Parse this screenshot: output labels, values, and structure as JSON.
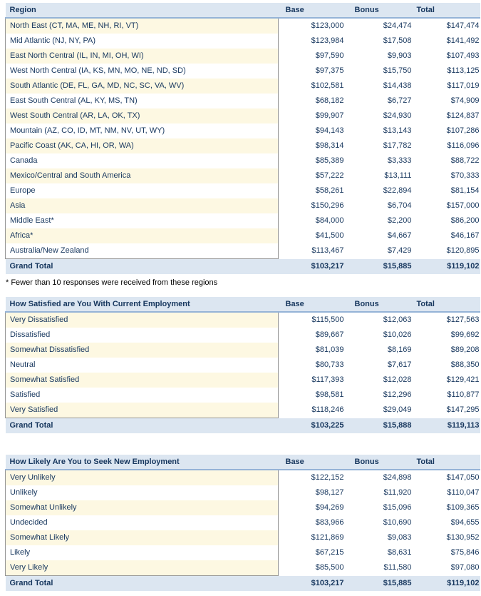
{
  "colors": {
    "header_bg": "#DCE6F1",
    "header_rule": "#95B3D7",
    "band_cream": "#FDF8E2",
    "grand_total_bg": "#DCE6F1",
    "text_navy": "#17375E",
    "label_box_border": "#969696"
  },
  "tables": [
    {
      "header": {
        "label": "Region",
        "base": "Base",
        "bonus": "Bonus",
        "total": "Total"
      },
      "rows": [
        {
          "label": "North East (CT, MA, ME, NH, RI, VT)",
          "base": "$123,000",
          "bonus": "$24,474",
          "total": "$147,474"
        },
        {
          "label": "Mid Atlantic (NJ, NY, PA)",
          "base": "$123,984",
          "bonus": "$17,508",
          "total": "$141,492"
        },
        {
          "label": "East North Central (IL, IN, MI, OH, WI)",
          "base": "$97,590",
          "bonus": "$9,903",
          "total": "$107,493"
        },
        {
          "label": "West North Central (IA, KS, MN, MO, NE, ND, SD)",
          "base": "$97,375",
          "bonus": "$15,750",
          "total": "$113,125"
        },
        {
          "label": "South Atlantic (DE, FL, GA, MD, NC, SC, VA, WV)",
          "base": "$102,581",
          "bonus": "$14,438",
          "total": "$117,019"
        },
        {
          "label": "East South Central (AL, KY, MS, TN)",
          "base": "$68,182",
          "bonus": "$6,727",
          "total": "$74,909"
        },
        {
          "label": "West South Central (AR, LA, OK, TX)",
          "base": "$99,907",
          "bonus": "$24,930",
          "total": "$124,837"
        },
        {
          "label": "Mountain (AZ, CO, ID, MT, NM, NV, UT, WY)",
          "base": "$94,143",
          "bonus": "$13,143",
          "total": "$107,286"
        },
        {
          "label": "Pacific Coast (AK, CA, HI, OR, WA)",
          "base": "$98,314",
          "bonus": "$17,782",
          "total": "$116,096"
        },
        {
          "label": "Canada",
          "base": "$85,389",
          "bonus": "$3,333",
          "total": "$88,722"
        },
        {
          "label": "Mexico/Central and South America",
          "base": "$57,222",
          "bonus": "$13,111",
          "total": "$70,333"
        },
        {
          "label": "Europe",
          "base": "$58,261",
          "bonus": "$22,894",
          "total": "$81,154"
        },
        {
          "label": "Asia",
          "base": "$150,296",
          "bonus": "$6,704",
          "total": "$157,000"
        },
        {
          "label": "Middle East*",
          "base": "$84,000",
          "bonus": "$2,200",
          "total": "$86,200"
        },
        {
          "label": "Africa*",
          "base": "$41,500",
          "bonus": "$4,667",
          "total": "$46,167"
        },
        {
          "label": "Australia/New Zealand",
          "base": "$113,467",
          "bonus": "$7,429",
          "total": "$120,895"
        }
      ],
      "grand_total": {
        "label": "Grand Total",
        "base": "$103,217",
        "bonus": "$15,885",
        "total": "$119,102"
      },
      "footnote": "* Fewer than 10 responses were received from these regions"
    },
    {
      "header": {
        "label": "How Satisfied are You With Current Employment",
        "base": "Base",
        "bonus": "Bonus",
        "total": "Total"
      },
      "rows": [
        {
          "label": "Very Dissatisfied",
          "base": "$115,500",
          "bonus": "$12,063",
          "total": "$127,563"
        },
        {
          "label": "Dissatisfied",
          "base": "$89,667",
          "bonus": "$10,026",
          "total": "$99,692"
        },
        {
          "label": "Somewhat Dissatisfied",
          "base": "$81,039",
          "bonus": "$8,169",
          "total": "$89,208"
        },
        {
          "label": "Neutral",
          "base": "$80,733",
          "bonus": "$7,617",
          "total": "$88,350"
        },
        {
          "label": "Somewhat Satisfied",
          "base": "$117,393",
          "bonus": "$12,028",
          "total": "$129,421"
        },
        {
          "label": "Satisfied",
          "base": "$98,581",
          "bonus": "$12,296",
          "total": "$110,877"
        },
        {
          "label": "Very Satisfied",
          "base": "$118,246",
          "bonus": "$29,049",
          "total": "$147,295"
        }
      ],
      "grand_total": {
        "label": "Grand Total",
        "base": "$103,225",
        "bonus": "$15,888",
        "total": "$119,113"
      },
      "footnote": ""
    },
    {
      "header": {
        "label": "How Likely Are You to Seek New Employment",
        "base": "Base",
        "bonus": "Bonus",
        "total": "Total"
      },
      "rows": [
        {
          "label": "Very Unlikely",
          "base": "$122,152",
          "bonus": "$24,898",
          "total": "$147,050"
        },
        {
          "label": "Unlikely",
          "base": "$98,127",
          "bonus": "$11,920",
          "total": "$110,047"
        },
        {
          "label": "Somewhat Unlikely",
          "base": "$94,269",
          "bonus": "$15,096",
          "total": "$109,365"
        },
        {
          "label": "Undecided",
          "base": "$83,966",
          "bonus": "$10,690",
          "total": "$94,655"
        },
        {
          "label": "Somewhat Likely",
          "base": "$121,869",
          "bonus": "$9,083",
          "total": "$130,952"
        },
        {
          "label": "Likely",
          "base": "$67,215",
          "bonus": "$8,631",
          "total": "$75,846"
        },
        {
          "label": "Very Likely",
          "base": "$85,500",
          "bonus": "$11,580",
          "total": "$97,080"
        }
      ],
      "grand_total": {
        "label": "Grand Total",
        "base": "$103,217",
        "bonus": "$15,885",
        "total": "$119,102"
      },
      "footnote": ""
    }
  ]
}
